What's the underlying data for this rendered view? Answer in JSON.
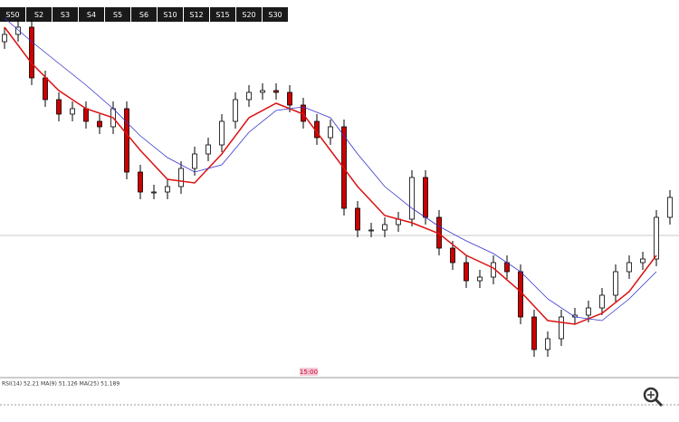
{
  "toolbar": {
    "buttons": [
      "S50",
      "S2",
      "S3",
      "S4",
      "S5",
      "S6",
      "S10",
      "S12",
      "S15",
      "S20",
      "S30"
    ]
  },
  "indicator": {
    "label": "RSI(14) 52.21 MA(9) 51.126 MA(25) 51.189"
  },
  "time_marker": "15:00",
  "chart_data": {
    "type": "candlestick",
    "ylim": [
      0,
      102.5
    ],
    "x": [
      0,
      1,
      2,
      3,
      4,
      5,
      6,
      7,
      8,
      9,
      10,
      11,
      12,
      13,
      14,
      15,
      16,
      17,
      18,
      19,
      20,
      21,
      22,
      23,
      24,
      25,
      26,
      27,
      28,
      29,
      30,
      31,
      32,
      33,
      34,
      35,
      36,
      37,
      38,
      39,
      40,
      41,
      42,
      43,
      44,
      45,
      46,
      47,
      48,
      49
    ],
    "close": [
      93,
      95,
      81,
      75,
      71,
      72.5,
      69,
      67.5,
      72.5,
      55,
      49.5,
      49.5,
      51,
      56,
      60,
      62.5,
      69,
      75,
      77,
      77.5,
      77,
      73.5,
      69,
      64.5,
      67.5,
      45,
      39,
      39,
      40.5,
      42,
      53.5,
      42.5,
      34,
      30,
      25,
      26,
      30,
      27.5,
      15,
      6,
      9,
      15,
      15.5,
      17.5,
      21,
      27.5,
      30,
      31,
      42.5,
      48
    ],
    "open": [
      91,
      93,
      95,
      81,
      75,
      71,
      72.5,
      69,
      67.5,
      72.5,
      55,
      49.5,
      49.5,
      51,
      56,
      60,
      62.5,
      69,
      75,
      77,
      77.5,
      77,
      73.5,
      69,
      64.5,
      67.5,
      45,
      39,
      39,
      40.5,
      42,
      53.5,
      42.5,
      34,
      30,
      25,
      26,
      30,
      27.5,
      15,
      6,
      9,
      15,
      15.5,
      17.5,
      21,
      27.5,
      30,
      31,
      42.5
    ],
    "high": [
      95,
      97,
      97,
      83,
      77,
      74.5,
      74.5,
      71,
      74.5,
      74.5,
      57,
      51.5,
      53,
      58,
      62,
      64.5,
      71,
      77,
      79,
      79.5,
      79.5,
      79,
      75.5,
      71,
      69.5,
      69.5,
      47,
      41,
      42.5,
      44,
      55.5,
      55.5,
      44.5,
      36,
      32,
      28,
      32,
      32,
      29.5,
      17,
      11,
      17,
      17.5,
      19.5,
      23,
      29.5,
      32,
      33,
      44.5,
      50
    ],
    "low": [
      89,
      91,
      79,
      73,
      69,
      69,
      67,
      65.5,
      65.5,
      53,
      47.5,
      47.5,
      47.5,
      49,
      54,
      58,
      60.5,
      67,
      73,
      75,
      75,
      71.5,
      67,
      62.5,
      62.5,
      43,
      37,
      37,
      37,
      38.5,
      40,
      40.5,
      32,
      28,
      23,
      23,
      24,
      25.5,
      13,
      4,
      4,
      7,
      13,
      13.5,
      15.5,
      19,
      25.5,
      28,
      29,
      40.5
    ],
    "up_color": "#ffffff",
    "down_color": "#cc0000",
    "series": [
      {
        "color": "#dd1111",
        "x": [
          0,
          2,
          4,
          6,
          8,
          10,
          12,
          14,
          16,
          18,
          20,
          22,
          24,
          26,
          28,
          30,
          32,
          34,
          36,
          38,
          40,
          42,
          44,
          46,
          48
        ],
        "values": [
          95,
          85,
          77.5,
          72.5,
          70,
          61,
          53,
          52,
          60,
          70,
          74,
          71,
          61,
          51,
          43,
          41,
          38,
          32,
          28.5,
          22,
          14,
          13,
          16,
          22,
          32
        ]
      },
      {
        "color": "#3333cc",
        "x": [
          0,
          2,
          4,
          6,
          8,
          10,
          12,
          14,
          16,
          18,
          20,
          22,
          24,
          26,
          28,
          30,
          32,
          34,
          36,
          38,
          40,
          42,
          44,
          46,
          48
        ],
        "values": [
          97.5,
          91,
          85,
          79,
          72.5,
          65,
          59,
          55,
          57,
          66,
          72,
          73,
          70,
          60,
          51,
          45,
          40,
          36,
          32.5,
          27.5,
          20,
          15,
          14,
          20,
          27.5
        ]
      }
    ]
  }
}
